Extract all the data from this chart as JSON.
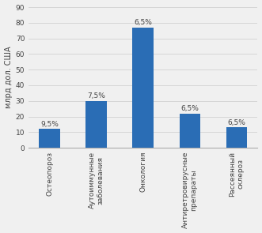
{
  "categories": [
    "Остеопороз",
    "Аутоиммунные\nзаболевания",
    "Онкология",
    "Антиретровирусные\nпрепараты",
    "Рассеянный\nсклероз"
  ],
  "values": [
    12,
    30,
    77,
    22,
    13
  ],
  "labels": [
    "9,5%",
    "7,5%",
    "6,5%",
    "6,5%",
    "6,5%"
  ],
  "bar_color": "#2a6db5",
  "ylabel": "млрд дол. США",
  "ylim": [
    0,
    90
  ],
  "yticks": [
    0,
    10,
    20,
    30,
    40,
    50,
    60,
    70,
    80,
    90
  ],
  "label_fontsize": 6.5,
  "tick_fontsize": 6.5,
  "ylabel_fontsize": 7,
  "bar_width": 0.45,
  "fig_bg": "#f0f0f0",
  "plot_bg": "#f0f0f0"
}
